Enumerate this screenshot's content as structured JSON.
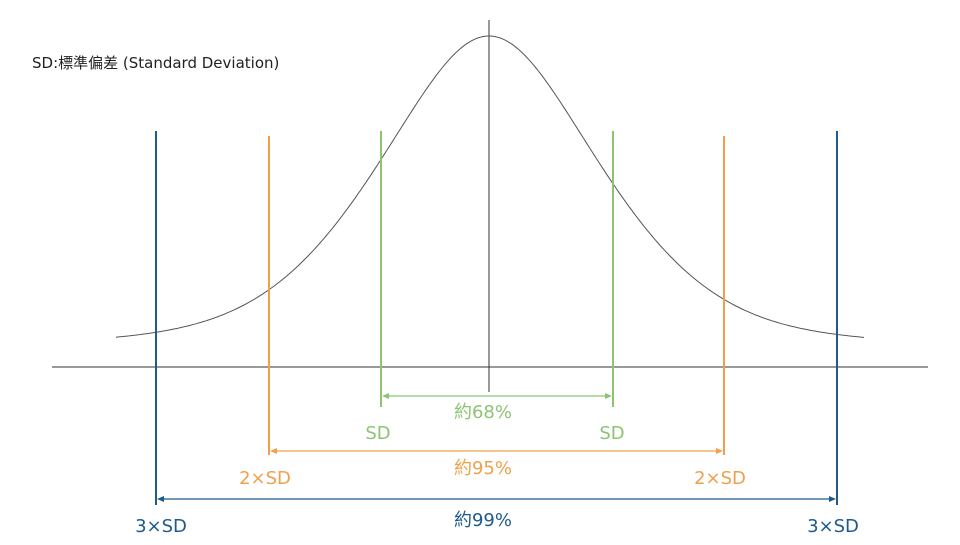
{
  "caption": "SD:標準偏差 (Standard Deviation)",
  "colors": {
    "curve": "#555555",
    "axis": "#333333",
    "sd1": "#8cc474",
    "sd2": "#f0a04b",
    "sd3": "#1f5a8a"
  },
  "bands": [
    {
      "key": "sd1",
      "left_label": "SD",
      "right_label": "SD",
      "span_label": "約68%"
    },
    {
      "key": "sd2",
      "left_label": "2×SD",
      "right_label": "2×SD",
      "span_label": "約95%"
    },
    {
      "key": "sd3",
      "left_label": "3×SD",
      "right_label": "3×SD",
      "span_label": "約99%"
    }
  ]
}
